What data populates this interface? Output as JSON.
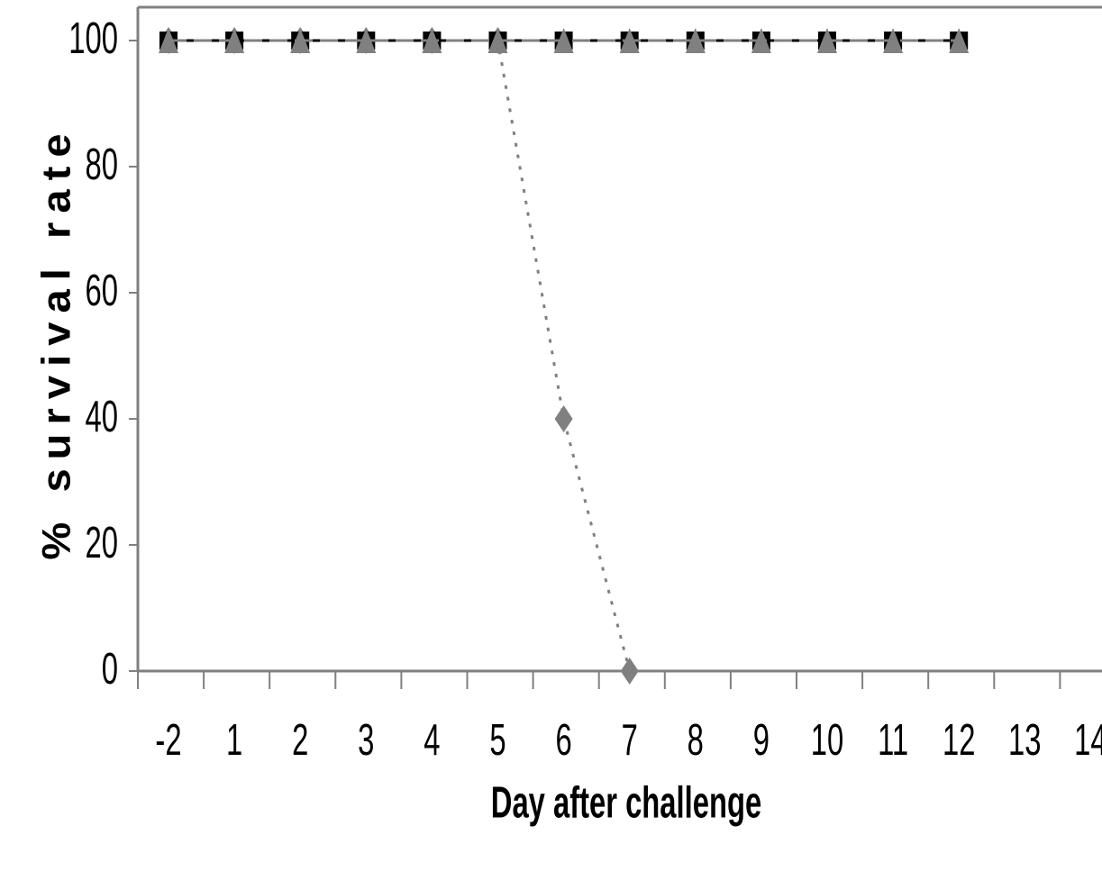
{
  "chart_data": {
    "type": "line",
    "categories": [
      "-2",
      "1",
      "2",
      "3",
      "4",
      "5",
      "6",
      "7",
      "8",
      "9",
      "10",
      "11",
      "12",
      "13",
      "14"
    ],
    "xlabel": "Day after challenge",
    "ylabel": "% survival rate",
    "ylim": [
      0,
      100
    ],
    "yticks": [
      0,
      20,
      40,
      60,
      80,
      100
    ],
    "grid": false,
    "legend": "none",
    "series": [
      {
        "marker": "square",
        "line": "solid",
        "color": "#000000",
        "values": [
          100,
          100,
          100,
          100,
          100,
          100,
          100,
          100,
          100,
          100,
          100,
          100,
          100,
          null,
          null
        ]
      },
      {
        "marker": "diamond",
        "line": "dotted",
        "color": "#808080",
        "values": [
          100,
          100,
          100,
          100,
          100,
          100,
          40,
          0,
          null,
          null,
          null,
          null,
          null,
          null,
          null
        ]
      },
      {
        "marker": "triangle",
        "line": "dashed",
        "color": "#808080",
        "values": [
          100,
          100,
          100,
          100,
          100,
          100,
          100,
          100,
          100,
          100,
          100,
          100,
          100,
          null,
          null
        ]
      }
    ]
  }
}
